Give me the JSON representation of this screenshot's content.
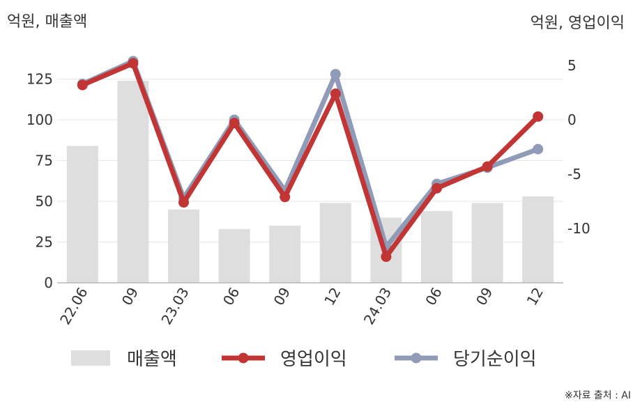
{
  "chart_data": {
    "type": "bar",
    "left_axis_title": "억원, 매출액",
    "right_axis_title": "억원, 영업이익",
    "categories": [
      "22.06",
      "09",
      "23.03",
      "06",
      "09",
      "12",
      "24.03",
      "06",
      "09",
      "12"
    ],
    "left_ylim": [
      0,
      150
    ],
    "left_yticks": [
      0,
      25,
      50,
      75,
      100,
      125
    ],
    "right_ylim": [
      -15,
      7.5
    ],
    "right_yticks": [
      -10,
      -5,
      0,
      5
    ],
    "grid": true,
    "legend_position": "bottom",
    "series": [
      {
        "name": "매출액",
        "type": "bar",
        "axis": "left",
        "color": "#dedede",
        "values": [
          84,
          124,
          45,
          33,
          35,
          49,
          40,
          44,
          49,
          53
        ]
      },
      {
        "name": "당기순이익",
        "type": "line",
        "axis": "right",
        "color": "#8f9bb7",
        "values": [
          3.3,
          5.4,
          -7.2,
          0,
          -6.5,
          4.2,
          -11.7,
          -5.9,
          -4.4,
          -2.7
        ]
      },
      {
        "name": "영업이익",
        "type": "line",
        "axis": "right",
        "color": "#c23535",
        "values": [
          3.2,
          5.2,
          -7.6,
          -0.3,
          -7.1,
          2.4,
          -12.6,
          -6.3,
          -4.3,
          0.3
        ]
      }
    ]
  },
  "legend": {
    "items": [
      {
        "label": "매출액",
        "kind": "bar",
        "color": "#dedede"
      },
      {
        "label": "영업이익",
        "kind": "line",
        "color": "#c23535"
      },
      {
        "label": "당기순이익",
        "kind": "line",
        "color": "#8f9bb7"
      }
    ]
  },
  "source": "※자료 출처 : AI"
}
